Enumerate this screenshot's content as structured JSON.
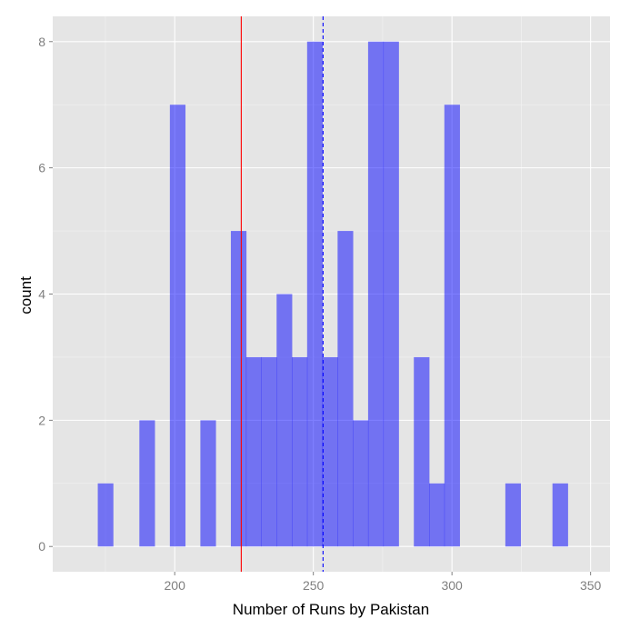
{
  "chart_data": {
    "type": "bar",
    "xlabel": "Number of Runs by Pakistan",
    "ylabel": "count",
    "xlim": [
      156,
      357
    ],
    "ylim": [
      -0.4,
      8.4
    ],
    "x_ticks": [
      200,
      250,
      300,
      350
    ],
    "y_ticks": [
      0,
      2,
      4,
      6,
      8
    ],
    "bin_width": 5.5,
    "bins": [
      {
        "x": 175,
        "count": 1
      },
      {
        "x": 190,
        "count": 2
      },
      {
        "x": 201,
        "count": 7
      },
      {
        "x": 212,
        "count": 2
      },
      {
        "x": 223,
        "count": 5
      },
      {
        "x": 228.5,
        "count": 3
      },
      {
        "x": 234,
        "count": 3
      },
      {
        "x": 239.5,
        "count": 4
      },
      {
        "x": 245,
        "count": 3
      },
      {
        "x": 250.5,
        "count": 8
      },
      {
        "x": 256,
        "count": 3
      },
      {
        "x": 261.5,
        "count": 5
      },
      {
        "x": 267,
        "count": 2
      },
      {
        "x": 272.5,
        "count": 8
      },
      {
        "x": 278,
        "count": 8
      },
      {
        "x": 289,
        "count": 3
      },
      {
        "x": 294.5,
        "count": 1
      },
      {
        "x": 300,
        "count": 7
      },
      {
        "x": 322,
        "count": 1
      },
      {
        "x": 339,
        "count": 1
      }
    ],
    "vlines": [
      {
        "x": 224,
        "color": "#ff0000",
        "style": "solid"
      },
      {
        "x": 253.5,
        "color": "#0000ff",
        "style": "dashed"
      }
    ],
    "grid": true,
    "bar_color": "#0000ff",
    "bar_opacity": 0.5,
    "panel_color": "#e5e5e5",
    "grid_color": "#ffffff"
  }
}
